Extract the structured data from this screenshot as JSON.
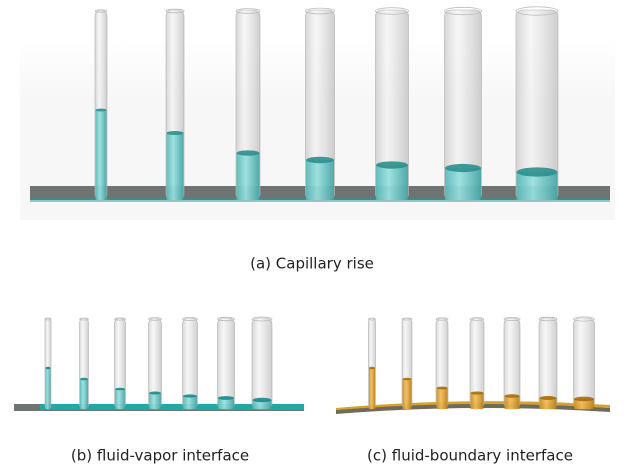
{
  "figure": {
    "panels": [
      {
        "caption": "(a) Capillary rise"
      },
      {
        "caption": "(b) fluid-vapor interface"
      },
      {
        "caption": "(c) fluid-boundary interface"
      }
    ]
  }
}
